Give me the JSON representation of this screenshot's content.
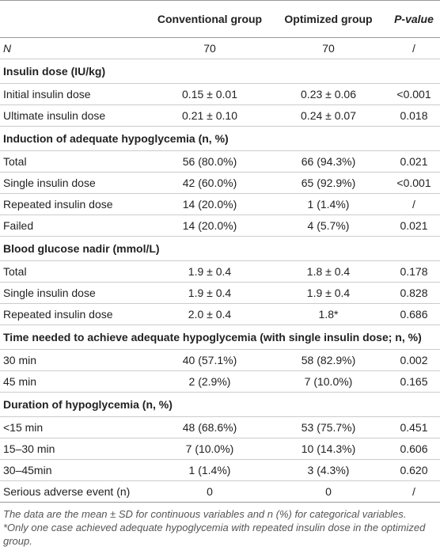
{
  "table": {
    "header": [
      "",
      "Conventional group",
      "Optimized group",
      "P-value"
    ],
    "rows": [
      [
        "N",
        "70",
        "70",
        "/"
      ],
      [
        "Insulin dose (IU/kg)"
      ],
      [
        "Initial insulin dose",
        "0.15 ± 0.01",
        "0.23 ± 0.06",
        "<0.001"
      ],
      [
        "Ultimate insulin dose",
        "0.21 ± 0.10",
        "0.24 ± 0.07",
        "0.018"
      ],
      [
        "Induction of adequate hypoglycemia (n, %)"
      ],
      [
        "Total",
        "56 (80.0%)",
        "66 (94.3%)",
        "0.021"
      ],
      [
        "Single insulin dose",
        "42 (60.0%)",
        "65 (92.9%)",
        "<0.001"
      ],
      [
        "Repeated insulin dose",
        "14 (20.0%)",
        "1 (1.4%)",
        "/"
      ],
      [
        "Failed",
        "14 (20.0%)",
        "4 (5.7%)",
        "0.021"
      ],
      [
        "Blood glucose nadir (mmol/L)"
      ],
      [
        "Total",
        "1.9 ± 0.4",
        "1.8 ± 0.4",
        "0.178"
      ],
      [
        "Single insulin dose",
        "1.9 ± 0.4",
        "1.9 ± 0.4",
        "0.828"
      ],
      [
        "Repeated insulin dose",
        "2.0 ± 0.4",
        "1.8*",
        "0.686"
      ],
      [
        "Time needed to achieve adequate hypoglycemia (with single insulin dose; n, %)"
      ],
      [
        "30 min",
        "40 (57.1%)",
        "58 (82.9%)",
        "0.002"
      ],
      [
        "45 min",
        "2 (2.9%)",
        "7 (10.0%)",
        "0.165"
      ],
      [
        "Duration of hypoglycemia (n, %)"
      ],
      [
        "<15 min",
        "48 (68.6%)",
        "53 (75.7%)",
        "0.451"
      ],
      [
        "15–30 min",
        "7 (10.0%)",
        "10 (14.3%)",
        "0.606"
      ],
      [
        "30–45min",
        "1 (1.4%)",
        "3 (4.3%)",
        "0.620"
      ],
      [
        "Serious adverse event (n)",
        "0",
        "0",
        "/"
      ]
    ],
    "notes": [
      "The data are the mean ± SD for continuous variables and n (%) for categorical variables.",
      "*Only one case achieved adequate hypoglycemia with repeated insulin dose in the optimized group."
    ]
  }
}
